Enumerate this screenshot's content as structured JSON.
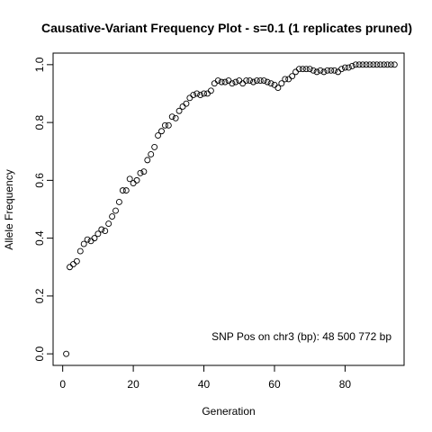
{
  "chart_data": {
    "type": "scatter",
    "title": "Causative-Variant Frequency Plot - s=0.1 (1 replicates pruned)",
    "xlabel": "Generation",
    "ylabel": "Allele Frequency",
    "xlim": [
      -2.72,
      96.72
    ],
    "ylim": [
      -0.04,
      1.04
    ],
    "xticks": [
      0,
      20,
      40,
      60,
      80
    ],
    "yticks": [
      0.0,
      0.2,
      0.4,
      0.6,
      0.8,
      1.0
    ],
    "xtick_labels": [
      "0",
      "20",
      "40",
      "60",
      "80"
    ],
    "ytick_labels": [
      "0.0",
      "0.2",
      "0.4",
      "0.6",
      "0.8",
      "1.0"
    ],
    "grid": false,
    "legend": "none",
    "annotation": "SNP Pos on chr3 (bp): 48 500 772 bp",
    "point_color": "#000000",
    "x": [
      1,
      2,
      3,
      4,
      5,
      6,
      7,
      8,
      9,
      10,
      11,
      12,
      13,
      14,
      15,
      16,
      17,
      18,
      19,
      20,
      21,
      22,
      23,
      24,
      25,
      26,
      27,
      28,
      29,
      30,
      31,
      32,
      33,
      34,
      35,
      36,
      37,
      38,
      39,
      40,
      41,
      42,
      43,
      44,
      45,
      46,
      47,
      48,
      49,
      50,
      51,
      52,
      53,
      54,
      55,
      56,
      57,
      58,
      59,
      60,
      61,
      62,
      63,
      64,
      65,
      66,
      67,
      68,
      69,
      70,
      71,
      72,
      73,
      74,
      75,
      76,
      77,
      78,
      79,
      80,
      81,
      82,
      83,
      84,
      85,
      86,
      87,
      88,
      89,
      90,
      91,
      92,
      93,
      94
    ],
    "y": [
      0.0,
      0.3,
      0.31,
      0.32,
      0.355,
      0.38,
      0.395,
      0.39,
      0.4,
      0.415,
      0.43,
      0.425,
      0.45,
      0.475,
      0.495,
      0.525,
      0.565,
      0.565,
      0.605,
      0.59,
      0.6,
      0.625,
      0.63,
      0.67,
      0.69,
      0.715,
      0.755,
      0.77,
      0.79,
      0.79,
      0.82,
      0.815,
      0.84,
      0.855,
      0.865,
      0.885,
      0.895,
      0.9,
      0.895,
      0.9,
      0.9,
      0.91,
      0.935,
      0.945,
      0.94,
      0.94,
      0.945,
      0.935,
      0.94,
      0.945,
      0.935,
      0.945,
      0.945,
      0.94,
      0.945,
      0.945,
      0.945,
      0.94,
      0.935,
      0.93,
      0.92,
      0.935,
      0.95,
      0.95,
      0.96,
      0.975,
      0.985,
      0.985,
      0.985,
      0.985,
      0.98,
      0.975,
      0.98,
      0.975,
      0.98,
      0.98,
      0.98,
      0.975,
      0.985,
      0.99,
      0.99,
      0.995,
      1.0,
      1.0,
      1.0,
      1.0,
      1.0,
      1.0,
      1.0,
      1.0,
      1.0,
      1.0,
      1.0,
      1.0
    ]
  }
}
